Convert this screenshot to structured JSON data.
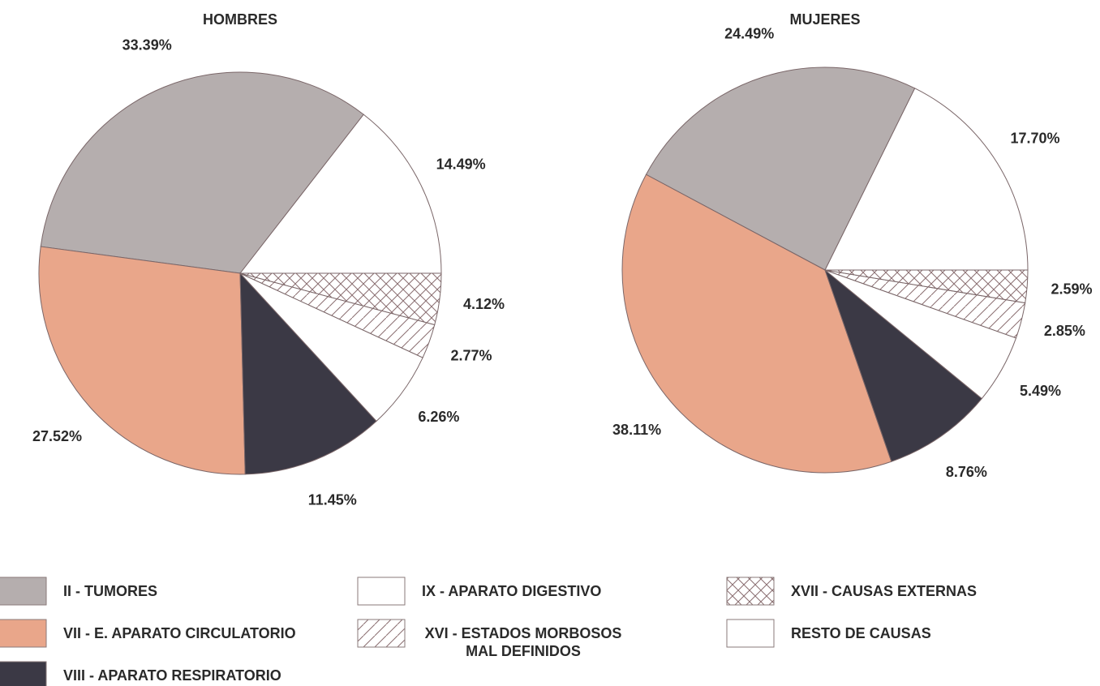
{
  "chart_data": [
    {
      "type": "pie",
      "title": "HOMBRES",
      "categories": [
        "II - TUMORES",
        "VII - E. APARATO CIRCULATORIO",
        "VIII - APARATO RESPIRATORIO",
        "IX - APARATO DIGESTIVO",
        "XVI - ESTADOS MORBOSOS MAL DEFINIDOS",
        "XVII - CAUSAS EXTERNAS",
        "RESTO DE CAUSAS"
      ],
      "values": [
        33.39,
        27.52,
        11.45,
        14.49,
        2.77,
        4.12,
        6.26
      ],
      "value_labels": [
        "33.39%",
        "27.52%",
        "11.45%",
        "14.49%",
        "2.77%",
        "4.12%",
        "6.26%"
      ],
      "colors": [
        "#b5aeae",
        "#e9a68a",
        "#3b3945",
        "#ffffff",
        "#ffffff",
        "#ffffff",
        "#ffffff"
      ],
      "patterns": [
        "none",
        "none",
        "none",
        "none",
        "diagonal",
        "cross",
        "none"
      ]
    },
    {
      "type": "pie",
      "title": "MUJERES",
      "categories": [
        "II - TUMORES",
        "VII - E. APARATO CIRCULATORIO",
        "VIII - APARATO RESPIRATORIO",
        "IX - APARATO DIGESTIVO",
        "XVI - ESTADOS MORBOSOS MAL DEFINIDOS",
        "XVII - CAUSAS EXTERNAS",
        "RESTO DE CAUSAS"
      ],
      "values": [
        24.49,
        38.11,
        8.76,
        17.7,
        2.85,
        2.59,
        5.49
      ],
      "value_labels": [
        "24.49%",
        "38.11%",
        "8.76%",
        "17.70%",
        "2.85%",
        "2.59%",
        "5.49%"
      ],
      "colors": [
        "#b5aeae",
        "#e9a68a",
        "#3b3945",
        "#ffffff",
        "#ffffff",
        "#ffffff",
        "#ffffff"
      ],
      "patterns": [
        "none",
        "none",
        "none",
        "none",
        "diagonal",
        "cross",
        "none"
      ]
    }
  ]
}
